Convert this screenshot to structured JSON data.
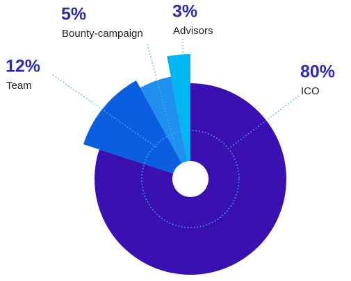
{
  "chart_data": {
    "type": "pie",
    "categories": [
      "ICO",
      "Team",
      "Bounty-campaign",
      "Advisors"
    ],
    "values": [
      80,
      12,
      5,
      3
    ],
    "value_labels": [
      "80%",
      "12%",
      "5%",
      "3%"
    ],
    "colors": [
      "#3a10b0",
      "#0a5fe0",
      "#1f8ff0",
      "#00b6f2"
    ]
  }
}
